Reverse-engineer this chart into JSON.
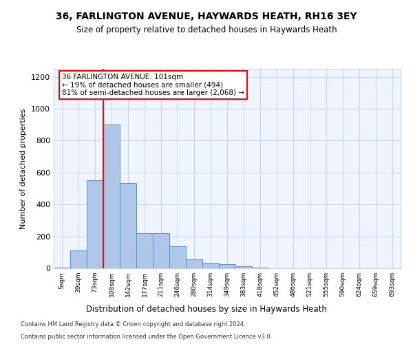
{
  "title1": "36, FARLINGTON AVENUE, HAYWARDS HEATH, RH16 3EY",
  "title2": "Size of property relative to detached houses in Haywards Heath",
  "xlabel": "Distribution of detached houses by size in Haywards Heath",
  "ylabel": "Number of detached properties",
  "categories": [
    "5sqm",
    "39sqm",
    "73sqm",
    "108sqm",
    "142sqm",
    "177sqm",
    "211sqm",
    "246sqm",
    "280sqm",
    "314sqm",
    "349sqm",
    "383sqm",
    "418sqm",
    "452sqm",
    "486sqm",
    "521sqm",
    "555sqm",
    "590sqm",
    "624sqm",
    "659sqm",
    "693sqm"
  ],
  "values": [
    5,
    110,
    550,
    900,
    535,
    220,
    220,
    140,
    55,
    35,
    25,
    15,
    5,
    2,
    1,
    1,
    1,
    0,
    0,
    0,
    0
  ],
  "bar_color": "#aec6e8",
  "bar_edge_color": "#5a8fc2",
  "annotation_text": "36 FARLINGTON AVENUE: 101sqm\n← 19% of detached houses are smaller (494)\n81% of semi-detached houses are larger (2,068) →",
  "footnote1": "Contains HM Land Registry data © Crown copyright and database right 2024.",
  "footnote2": "Contains public sector information licensed under the Open Government Licence v3.0.",
  "ylim": [
    0,
    1250
  ],
  "yticks": [
    0,
    200,
    400,
    600,
    800,
    1000,
    1200
  ],
  "red_line_index": 3.0,
  "property_bar_index": 3,
  "background_color": "#f0f4ff"
}
